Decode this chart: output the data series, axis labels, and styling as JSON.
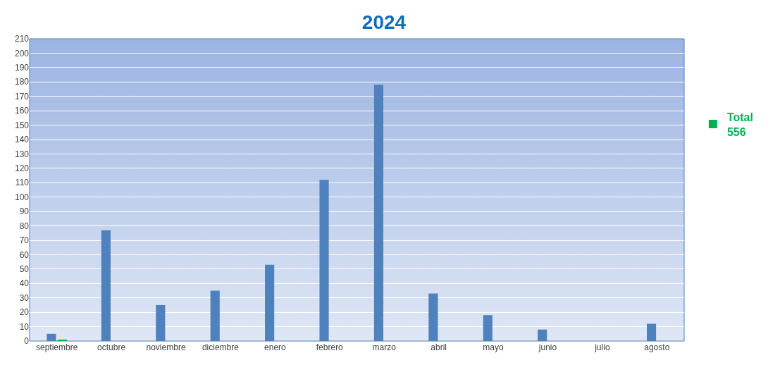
{
  "chart_data": {
    "type": "bar",
    "title": "2024",
    "categories": [
      "septiembre",
      "octubre",
      "noviembre",
      "diciembre",
      "enero",
      "febrero",
      "marzo",
      "abril",
      "mayo",
      "junio",
      "julio",
      "agosto"
    ],
    "series": [
      {
        "color": "#4f81bd",
        "values": [
          5,
          77,
          25,
          35,
          53,
          112,
          178,
          33,
          18,
          8,
          0,
          12
        ]
      },
      {
        "name": "Total 556",
        "color": "#00b050",
        "values": [
          1,
          null,
          null,
          null,
          null,
          null,
          null,
          null,
          null,
          null,
          null,
          null
        ]
      }
    ],
    "ylim": [
      0,
      210
    ],
    "yticks": [
      0,
      10,
      20,
      30,
      40,
      50,
      60,
      70,
      80,
      90,
      100,
      110,
      120,
      130,
      140,
      150,
      160,
      170,
      180,
      190,
      200,
      210
    ],
    "grid": "y",
    "legend": "right"
  }
}
